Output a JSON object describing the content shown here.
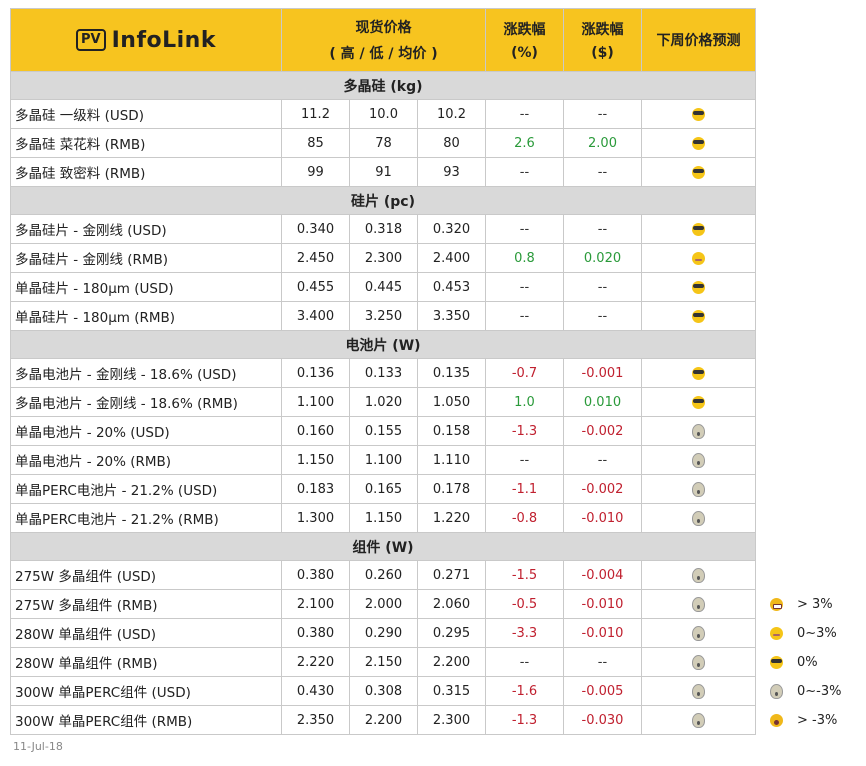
{
  "header": {
    "logo_box": "PV",
    "logo_text": "InfoLink",
    "price_title": "现货价格",
    "price_sub": "( 高 / 低 / 均价 )",
    "pct_title": "涨跌幅",
    "pct_sub": "(%)",
    "usd_title": "涨跌幅",
    "usd_sub": "($)",
    "forecast": "下周价格预测"
  },
  "sections": [
    {
      "title": "多晶硅 (kg)",
      "rows": [
        {
          "name": "多晶硅 一级料 (USD)",
          "high": "11.2",
          "low": "10.0",
          "avg": "10.2",
          "pct": "--",
          "chg": "--",
          "trend": "flat",
          "icon": "cool-icon"
        },
        {
          "name": "多晶硅 菜花料 (RMB)",
          "high": "85",
          "low": "78",
          "avg": "80",
          "pct": "2.6",
          "chg": "2.00",
          "trend": "up",
          "icon": "cool-icon"
        },
        {
          "name": "多晶硅 致密料 (RMB)",
          "high": "99",
          "low": "91",
          "avg": "93",
          "pct": "--",
          "chg": "--",
          "trend": "flat",
          "icon": "cool-icon"
        }
      ]
    },
    {
      "title": "硅片 (pc)",
      "rows": [
        {
          "name": "多晶硅片 - 金刚线 (USD)",
          "high": "0.340",
          "low": "0.318",
          "avg": "0.320",
          "pct": "--",
          "chg": "--",
          "trend": "flat",
          "icon": "cool-icon"
        },
        {
          "name": "多晶硅片 - 金刚线 (RMB)",
          "high": "2.450",
          "low": "2.300",
          "avg": "2.400",
          "pct": "0.8",
          "chg": "0.020",
          "trend": "up",
          "icon": "smile-icon"
        },
        {
          "name": "单晶硅片 - 180μm (USD)",
          "high": "0.455",
          "low": "0.445",
          "avg": "0.453",
          "pct": "--",
          "chg": "--",
          "trend": "flat",
          "icon": "cool-icon"
        },
        {
          "name": "单晶硅片 - 180μm (RMB)",
          "high": "3.400",
          "low": "3.250",
          "avg": "3.350",
          "pct": "--",
          "chg": "--",
          "trend": "flat",
          "icon": "cool-icon"
        }
      ]
    },
    {
      "title": "电池片 (W)",
      "rows": [
        {
          "name": "多晶电池片 - 金刚线 - 18.6% (USD)",
          "high": "0.136",
          "low": "0.133",
          "avg": "0.135",
          "pct": "-0.7",
          "chg": "-0.001",
          "trend": "down",
          "icon": "cool-icon"
        },
        {
          "name": "多晶电池片 - 金刚线 - 18.6% (RMB)",
          "high": "1.100",
          "low": "1.020",
          "avg": "1.050",
          "pct": "1.0",
          "chg": "0.010",
          "trend": "up",
          "icon": "cool-icon"
        },
        {
          "name": "单晶电池片 - 20% (USD)",
          "high": "0.160",
          "low": "0.155",
          "avg": "0.158",
          "pct": "-1.3",
          "chg": "-0.002",
          "trend": "down",
          "icon": "scream-icon"
        },
        {
          "name": "单晶电池片 - 20% (RMB)",
          "high": "1.150",
          "low": "1.100",
          "avg": "1.110",
          "pct": "--",
          "chg": "--",
          "trend": "flat",
          "icon": "scream-icon"
        },
        {
          "name": "单晶PERC电池片 - 21.2% (USD)",
          "high": "0.183",
          "low": "0.165",
          "avg": "0.178",
          "pct": "-1.1",
          "chg": "-0.002",
          "trend": "down",
          "icon": "scream-icon"
        },
        {
          "name": "单晶PERC电池片 - 21.2% (RMB)",
          "high": "1.300",
          "low": "1.150",
          "avg": "1.220",
          "pct": "-0.8",
          "chg": "-0.010",
          "trend": "down",
          "icon": "scream-icon"
        }
      ]
    },
    {
      "title": "组件 (W)",
      "rows": [
        {
          "name": "275W 多晶组件 (USD)",
          "high": "0.380",
          "low": "0.260",
          "avg": "0.271",
          "pct": "-1.5",
          "chg": "-0.004",
          "trend": "down",
          "icon": "scream-icon"
        },
        {
          "name": "275W 多晶组件 (RMB)",
          "high": "2.100",
          "low": "2.000",
          "avg": "2.060",
          "pct": "-0.5",
          "chg": "-0.010",
          "trend": "down",
          "icon": "scream-icon"
        },
        {
          "name": "280W 单晶组件 (USD)",
          "high": "0.380",
          "low": "0.290",
          "avg": "0.295",
          "pct": "-3.3",
          "chg": "-0.010",
          "trend": "down",
          "icon": "scream-icon"
        },
        {
          "name": "280W 单晶组件 (RMB)",
          "high": "2.220",
          "low": "2.150",
          "avg": "2.200",
          "pct": "--",
          "chg": "--",
          "trend": "flat",
          "icon": "scream-icon"
        },
        {
          "name": "300W 单晶PERC组件 (USD)",
          "high": "0.430",
          "low": "0.308",
          "avg": "0.315",
          "pct": "-1.6",
          "chg": "-0.005",
          "trend": "down",
          "icon": "scream-icon"
        },
        {
          "name": "300W 单晶PERC组件 (RMB)",
          "high": "2.350",
          "low": "2.200",
          "avg": "2.300",
          "pct": "-1.3",
          "chg": "-0.030",
          "trend": "down",
          "icon": "scream-icon"
        }
      ]
    }
  ],
  "legend": [
    {
      "icon": "grin-icon",
      "label": "> 3%"
    },
    {
      "icon": "smile-icon",
      "label": "0~3%"
    },
    {
      "icon": "cool-icon",
      "label": "0%"
    },
    {
      "icon": "scream-icon",
      "label": "0~-3%"
    },
    {
      "icon": "wow-icon",
      "label": "> -3%"
    }
  ],
  "footer": {
    "date": "11-Jul-18"
  },
  "colors": {
    "header_bg": "#f7c41f",
    "section_bg": "#d9d9d9",
    "up": "#2a9a3a",
    "down": "#c0202f"
  }
}
